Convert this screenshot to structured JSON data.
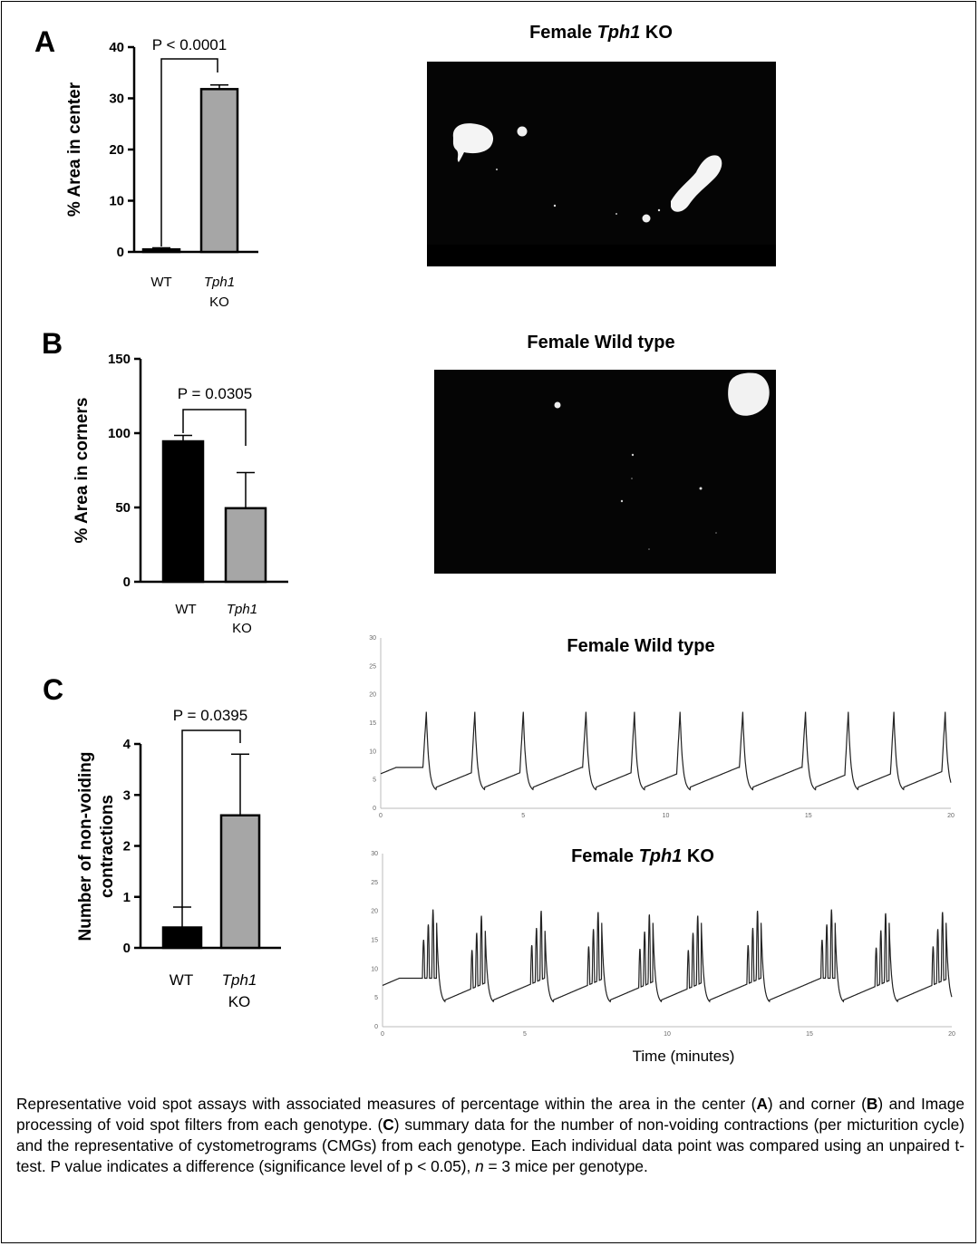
{
  "panels": {
    "A": {
      "letter": "A",
      "image_title_prefix": "Female ",
      "image_title_italic": "Tph1",
      "image_title_suffix": " KO",
      "chart": {
        "type": "bar",
        "ylabel": "% Area in center",
        "ylim": [
          0,
          40
        ],
        "yticks": [
          "0",
          "10",
          "20",
          "30",
          "40"
        ],
        "categories": [
          {
            "name": "WT",
            "italic": false
          },
          {
            "name": "Tph1",
            "italic": true,
            "line2": "KO"
          }
        ],
        "values": [
          0.5,
          31.8
        ],
        "errors": [
          0.3,
          0.8
        ],
        "colors": [
          "#000000",
          "#a6a6a6"
        ],
        "p_value": "P < 0.0001"
      }
    },
    "B": {
      "letter": "B",
      "image_title": "Female Wild type",
      "chart": {
        "type": "bar",
        "ylabel": "% Area in corners",
        "ylim": [
          0,
          150
        ],
        "yticks": [
          "0",
          "50",
          "100",
          "150"
        ],
        "categories": [
          {
            "name": "WT",
            "italic": false
          },
          {
            "name": "Tph1",
            "italic": true,
            "line2": "KO"
          }
        ],
        "values": [
          94.5,
          49.5
        ],
        "errors": [
          4,
          24
        ],
        "colors": [
          "#000000",
          "#a6a6a6"
        ],
        "p_value": "P = 0.0305"
      }
    },
    "C": {
      "letter": "C",
      "ylabel_line1": "Number of non-voiding",
      "ylabel_line2": "contractions",
      "chart": {
        "type": "bar",
        "ylim": [
          0,
          4
        ],
        "yticks": [
          "0",
          "1",
          "2",
          "3",
          "4"
        ],
        "categories": [
          {
            "name": "WT",
            "italic": false
          },
          {
            "name": "Tph1",
            "italic": true,
            "line2": "KO"
          }
        ],
        "values": [
          0.4,
          2.6
        ],
        "errors": [
          0.4,
          1.2
        ],
        "colors": [
          "#000000",
          "#a6a6a6"
        ],
        "p_value": "P = 0.0395"
      },
      "cmg_wt_title": "Female Wild type",
      "cmg_ko_title_prefix": "Female ",
      "cmg_ko_title_italic": "Tph1",
      "cmg_ko_title_suffix": " KO",
      "cmg_yticks": [
        "0",
        "5",
        "10",
        "15",
        "20",
        "25",
        "30"
      ],
      "cmg_xticks": [
        "0",
        "5",
        "10",
        "15",
        "20"
      ],
      "cmg_xlabel": "Time (minutes)",
      "cmg_wt_peak_times": [
        1.6,
        3.3,
        5.0,
        7.2,
        8.9,
        10.5,
        12.7,
        14.9,
        16.4,
        18.0,
        19.8
      ],
      "cmg_ko_burst_times": [
        1.9,
        3.6,
        5.7,
        7.7,
        9.5,
        11.2,
        13.3,
        15.9,
        17.8,
        19.8
      ]
    }
  },
  "caption": {
    "t1": "Representative void spot assays with associated measures of percentage within the area in the center (",
    "b1": "A",
    "t2": ") and corner (",
    "b2": "B",
    "t3": ") and Image processing of void spot filters from each genotype. (",
    "b3": "C",
    "t4": ") summary data for the number of non-voiding contractions (per micturition cycle) and the representative of cystometrograms (CMGs) from each genotype. Each individual data point was compared using an unpaired t-test. P value indicates a difference (significance level of p < 0.05), ",
    "i1": "n",
    "t5": " = 3 mice per genotype."
  }
}
